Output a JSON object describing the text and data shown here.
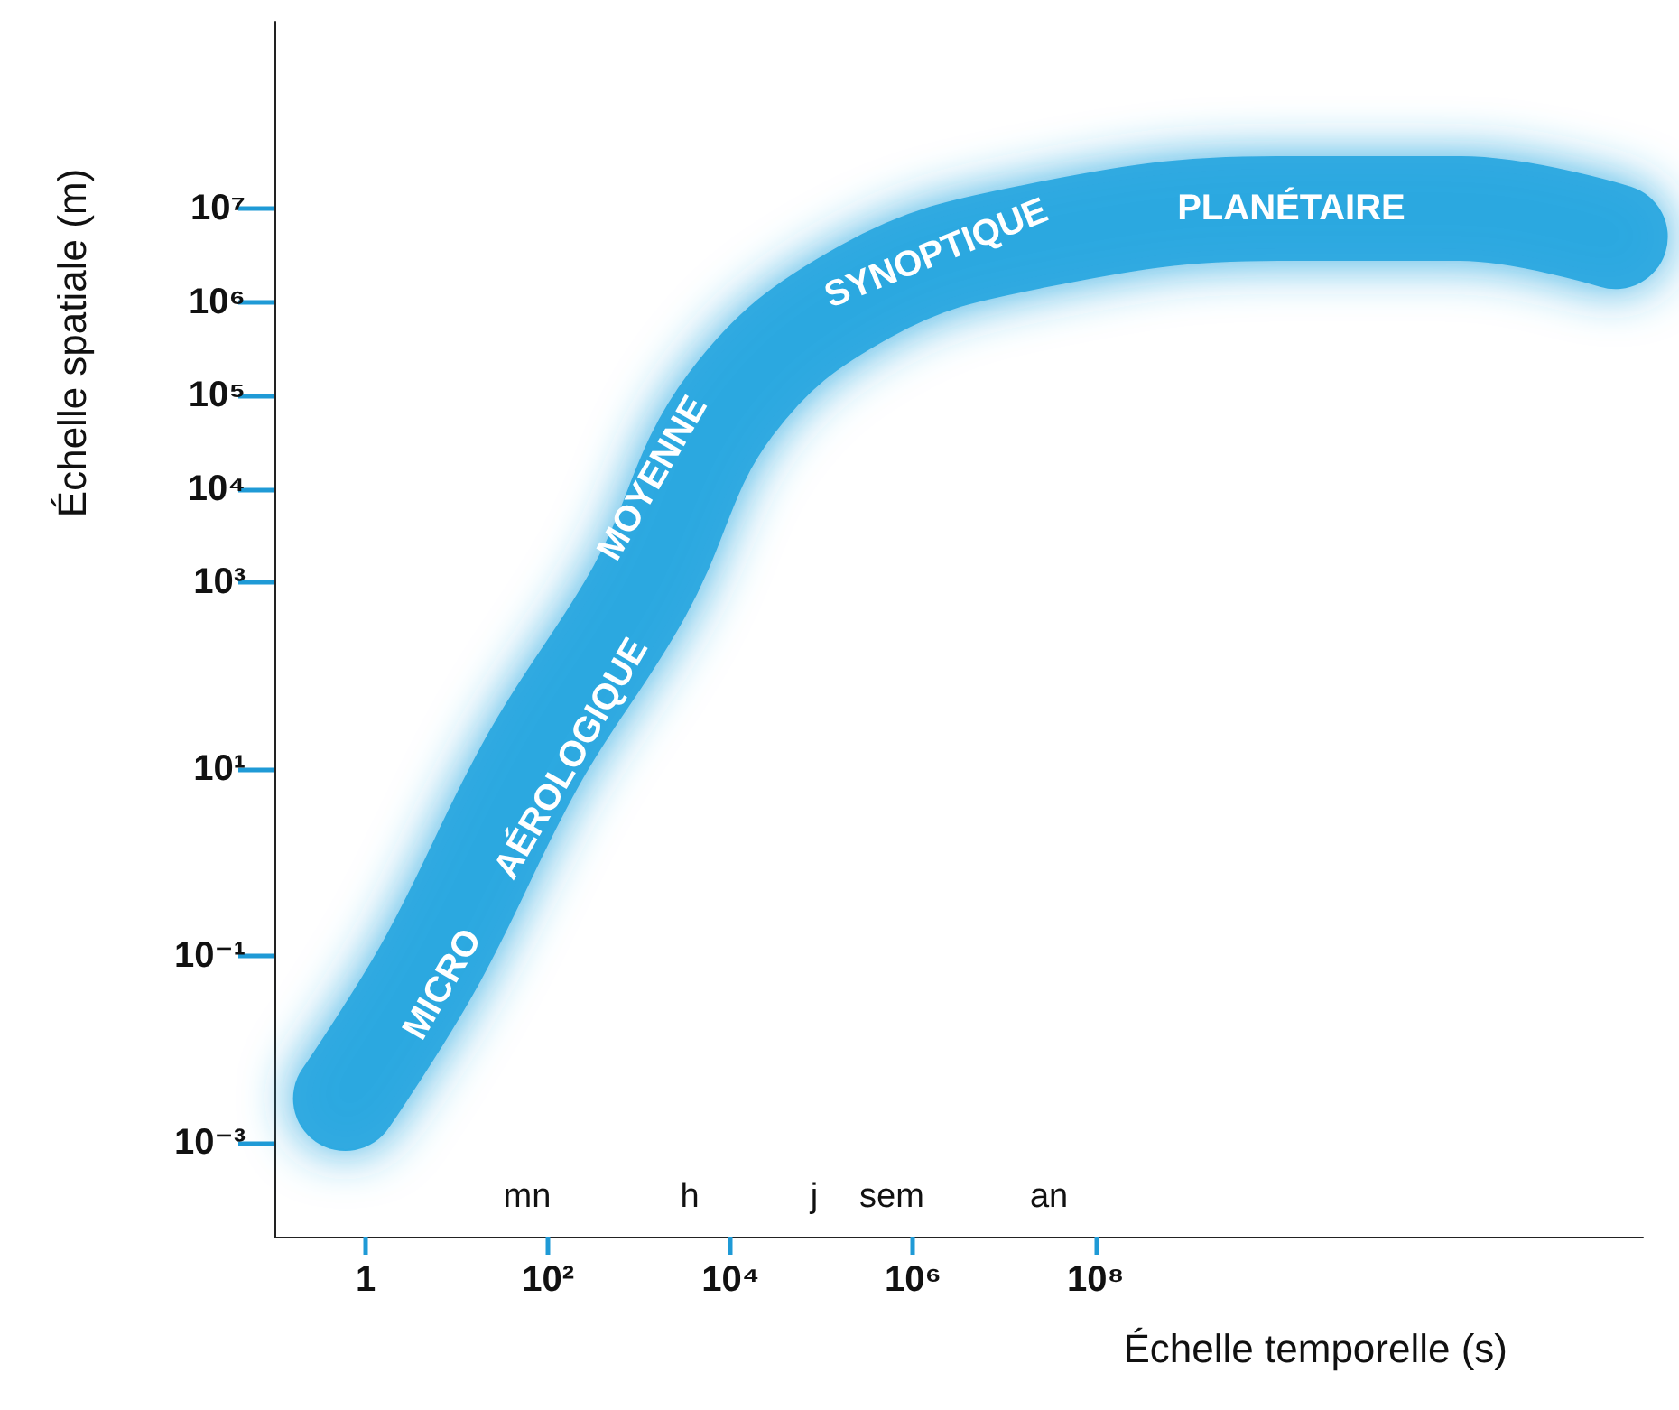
{
  "chart_data": {
    "type": "line",
    "xlabel": "Échelle temporelle (s)",
    "ylabel": "Échelle spatiale (m)",
    "log": "xy",
    "x": [
      0.6,
      5,
      70,
      1000,
      10000,
      300000,
      20000000,
      10000000000,
      1000000000000,
      50000000000000
    ],
    "series": [
      {
        "color": "#29a8e0",
        "values": [
          0.003,
          0.08,
          13,
          800,
          80000,
          1300000,
          5000000,
          10000000,
          10000000,
          5000000
        ]
      }
    ],
    "xlim": [
      0.1,
      100000000000000
    ],
    "ylim": [
      0.0001,
      1000000000
    ],
    "xticks": [
      {
        "value": 1,
        "label": "1"
      },
      {
        "value": 100,
        "label": "10²"
      },
      {
        "value": 10000,
        "label": "10⁴"
      },
      {
        "value": 1000000,
        "label": "10⁶"
      },
      {
        "value": 100000000,
        "label": "10⁸"
      }
    ],
    "yticks": [
      {
        "value": 0.001,
        "label": "10⁻³"
      },
      {
        "value": 0.1,
        "label": "10⁻¹"
      },
      {
        "value": 10,
        "label": "10¹"
      },
      {
        "value": 1000,
        "label": "10³"
      },
      {
        "value": 10000,
        "label": "10⁴"
      },
      {
        "value": 100000,
        "label": "10⁵"
      },
      {
        "value": 1000000,
        "label": "10⁶"
      },
      {
        "value": 10000000,
        "label": "10⁷"
      }
    ],
    "grid": false,
    "line_style": "solid",
    "annotations": [
      {
        "text": "MICRO",
        "x": 7,
        "y": 0.05
      },
      {
        "text": "AÉROLOGIQUE",
        "x": 180,
        "y": 13
      },
      {
        "text": "MOYENNE",
        "x": 1400,
        "y": 13000
      },
      {
        "text": "SYNOPTIQUE",
        "x": 1800000,
        "y": 3300000
      },
      {
        "text": "PLANÉTAIRE",
        "x": 14000000000,
        "y": 10000000
      },
      "mn",
      "h",
      "j",
      "sem",
      "an"
    ]
  }
}
